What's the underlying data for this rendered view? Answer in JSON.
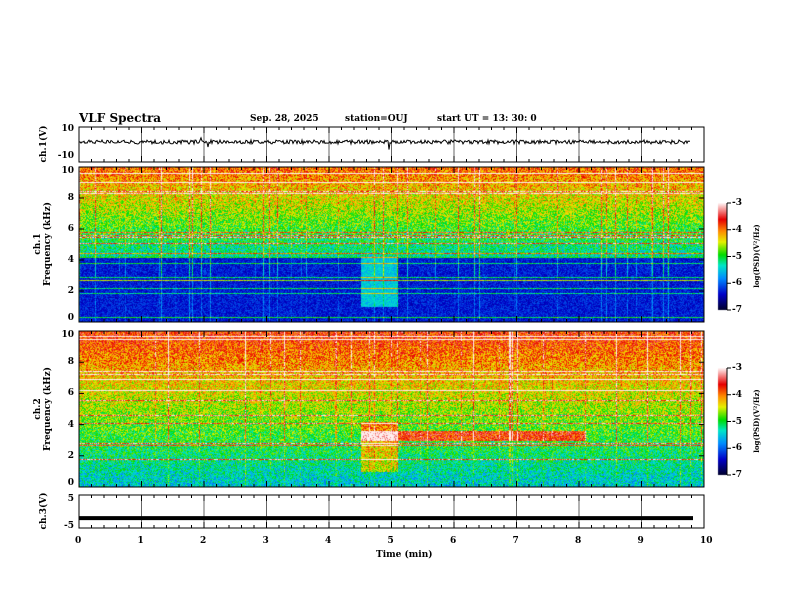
{
  "header": {
    "title": "VLF Spectra",
    "date": "Sep. 28, 2025",
    "station": "station=OUJ",
    "start": "start  UT =   13: 30: 0"
  },
  "chart_data": [
    {
      "type": "line",
      "name": "ch1",
      "ylabel": "ch.1(V)",
      "ylim": [
        -10,
        10
      ],
      "yticks": [
        "10",
        "-10"
      ],
      "xlim": [
        0,
        10
      ]
    },
    {
      "type": "heatmap",
      "name": "ch1-spectrogram",
      "ylabel": "ch.1\nFrequency (kHz)",
      "ylabel_top": "ch.1",
      "ylabel_bottom": "Frequency (kHz)",
      "ylim": [
        0,
        10
      ],
      "yticks": [
        "0",
        "2",
        "4",
        "6",
        "8",
        "10"
      ],
      "colorbar": {
        "label": "log(PSD)(V²/Hz)",
        "range": [
          -7,
          -3
        ],
        "ticks": [
          "-3",
          "-4",
          "-5",
          "-6",
          "-7"
        ]
      },
      "event": {
        "t_start": 4.5,
        "t_end": 5.1,
        "f_low": 2,
        "f_high": 4
      }
    },
    {
      "type": "heatmap",
      "name": "ch2-spectrogram",
      "ylabel_top": "ch.2",
      "ylabel_bottom": "Frequency (kHz)",
      "ylim": [
        0,
        10
      ],
      "yticks": [
        "0",
        "2",
        "4",
        "6",
        "8",
        "10"
      ],
      "colorbar": {
        "label": "log(PSD)(V²/Hz)",
        "range": [
          -7,
          -3
        ],
        "ticks": [
          "-3",
          "-4",
          "-5",
          "-6",
          "-7"
        ]
      },
      "event": {
        "t_start": 4.5,
        "t_end": 5.1,
        "line_khz": 3.3,
        "line_end": 8.1
      }
    },
    {
      "type": "line",
      "name": "ch3",
      "ylabel": "ch.3(V)",
      "ylim": [
        -5,
        5
      ],
      "yticks": [
        "5",
        "-5"
      ],
      "value": -2
    }
  ],
  "xaxis": {
    "label": "Time  (min)",
    "ticks": [
      "0",
      "1",
      "2",
      "3",
      "4",
      "5",
      "6",
      "7",
      "8",
      "9",
      "10"
    ]
  }
}
